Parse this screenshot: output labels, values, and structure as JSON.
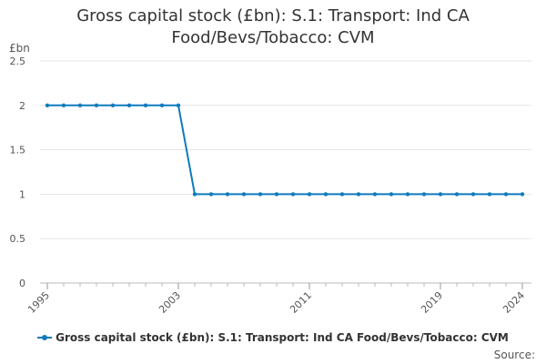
{
  "chart_data": {
    "type": "line",
    "title": "Gross capital stock (£bn): S.1: Transport: Ind CA Food/Bevs/Tobacco: CVM",
    "ylabel": "£bn",
    "xlabel": "",
    "ylim": [
      0,
      2.5
    ],
    "yticks": [
      "0",
      "0.5",
      "1",
      "1.5",
      "2",
      "2.5"
    ],
    "xlim": [
      1995,
      2024
    ],
    "xticks": [
      "1995",
      "2003",
      "2011",
      "2019",
      "2024"
    ],
    "grid": true,
    "legend_position": "bottom",
    "series": [
      {
        "name": "Gross capital stock (£bn): S.1: Transport: Ind CA Food/Bevs/Tobacco: CVM",
        "color": "#0f7bbd",
        "x": [
          1995,
          1996,
          1997,
          1998,
          1999,
          2000,
          2001,
          2002,
          2003,
          2004,
          2005,
          2006,
          2007,
          2008,
          2009,
          2010,
          2011,
          2012,
          2013,
          2014,
          2015,
          2016,
          2017,
          2018,
          2019,
          2020,
          2021,
          2022,
          2023,
          2024
        ],
        "values": [
          2,
          2,
          2,
          2,
          2,
          2,
          2,
          2,
          2,
          1,
          1,
          1,
          1,
          1,
          1,
          1,
          1,
          1,
          1,
          1,
          1,
          1,
          1,
          1,
          1,
          1,
          1,
          1,
          1,
          1
        ]
      }
    ]
  },
  "source_label": "Source:"
}
